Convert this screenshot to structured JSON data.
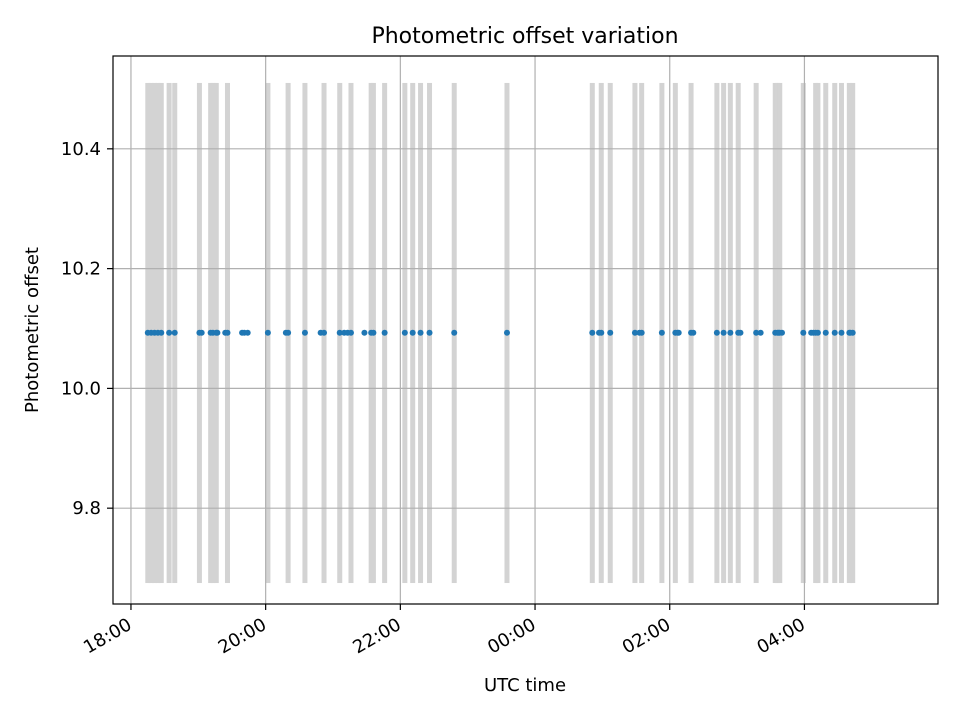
{
  "chart_data": {
    "type": "scatter",
    "title": "Photometric offset variation",
    "xlabel": "UTC time",
    "ylabel": "Photometric offset",
    "x_axis_type": "time",
    "x_start": "18:00",
    "xlim": [
      "17:44",
      "05:59"
    ],
    "ylim": [
      9.64,
      10.555
    ],
    "grid": true,
    "x_ticks": [
      "18:00",
      "20:00",
      "22:00",
      "00:00",
      "02:00",
      "04:00"
    ],
    "y_ticks": [
      "9.8",
      "10.0",
      "10.2",
      "10.4"
    ],
    "y_tick_values": [
      9.8,
      10.0,
      10.2,
      10.4
    ],
    "point_color": "#1f77b4",
    "band_color": "#d3d3d3",
    "band_y_range": [
      9.675,
      10.51
    ],
    "series": [
      {
        "y_constant": 10.093,
        "x": [
          "18:15",
          "18:18",
          "18:21",
          "18:24",
          "18:27",
          "18:34",
          "18:39",
          "19:01",
          "19:03",
          "19:11",
          "19:13",
          "19:16",
          "19:17",
          "19:24",
          "19:26",
          "19:39",
          "19:41",
          "19:44",
          "20:02",
          "20:18",
          "20:20",
          "20:35",
          "20:49",
          "20:52",
          "21:06",
          "21:10",
          "21:13",
          "21:16",
          "21:28",
          "21:34",
          "21:36",
          "21:46",
          "22:04",
          "22:11",
          "22:18",
          "22:26",
          "22:48",
          "23:35",
          "00:51",
          "00:57",
          "00:59",
          "01:07",
          "01:29",
          "01:33",
          "01:35",
          "01:53",
          "02:05",
          "02:07",
          "02:08",
          "02:19",
          "02:21",
          "02:42",
          "02:48",
          "02:54",
          "03:01",
          "03:03",
          "03:17",
          "03:21",
          "03:34",
          "03:36",
          "03:37",
          "03:38",
          "03:40",
          "03:59",
          "04:06",
          "04:08",
          "04:10",
          "04:12",
          "04:19",
          "04:27",
          "04:33",
          "04:40",
          "04:41",
          "04:43"
        ]
      }
    ],
    "bands": [
      "18:15",
      "18:18",
      "18:21",
      "18:24",
      "18:27",
      "18:34",
      "18:39",
      "19:01",
      "19:11",
      "19:13",
      "19:16",
      "19:26",
      "20:02",
      "20:20",
      "20:35",
      "20:52",
      "21:06",
      "21:16",
      "21:34",
      "21:36",
      "21:46",
      "22:04",
      "22:11",
      "22:18",
      "22:26",
      "22:48",
      "23:35",
      "00:51",
      "00:59",
      "01:07",
      "01:29",
      "01:35",
      "01:53",
      "02:05",
      "02:19",
      "02:42",
      "02:48",
      "02:54",
      "03:01",
      "03:17",
      "03:34",
      "03:36",
      "03:38",
      "03:59",
      "04:10",
      "04:12",
      "04:19",
      "04:27",
      "04:33",
      "04:40",
      "04:43"
    ]
  }
}
